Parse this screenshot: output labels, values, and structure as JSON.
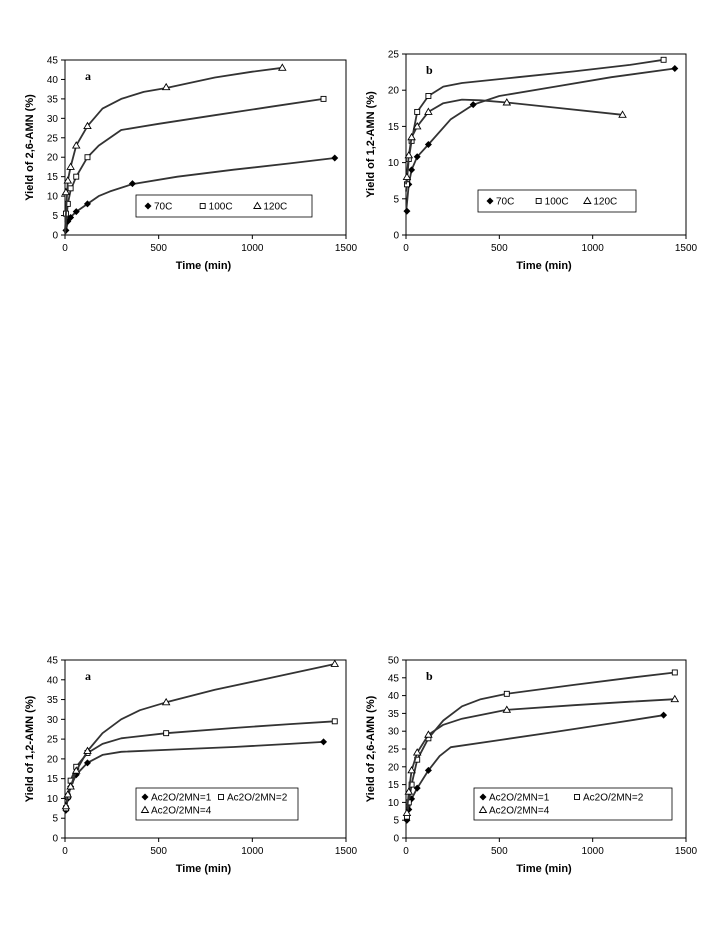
{
  "chart_data": [
    {
      "type": "line",
      "panel_label": "a",
      "xlabel": "Time  (min)",
      "ylabel": "Yield  of  2,6-AMN  (%)",
      "xlim": [
        0,
        1500
      ],
      "ylim": [
        0,
        45
      ],
      "xticks": [
        0,
        500,
        1000,
        1500
      ],
      "yticks": [
        0,
        5,
        10,
        15,
        20,
        25,
        30,
        35,
        40,
        45
      ],
      "legend_position": "lower-right",
      "series": [
        {
          "name": "70C",
          "marker": "diamond",
          "points": [
            [
              5,
              1.2
            ],
            [
              15,
              3.5
            ],
            [
              30,
              4.5
            ],
            [
              60,
              6
            ],
            [
              120,
              8
            ],
            [
              360,
              13.2
            ],
            [
              1440,
              19.8
            ]
          ],
          "curve": [
            [
              0,
              0
            ],
            [
              15,
              3.3
            ],
            [
              30,
              4.6
            ],
            [
              60,
              6
            ],
            [
              120,
              8
            ],
            [
              180,
              10
            ],
            [
              240,
              11.2
            ],
            [
              360,
              13.1
            ],
            [
              600,
              15
            ],
            [
              900,
              16.8
            ],
            [
              1200,
              18.4
            ],
            [
              1440,
              19.8
            ]
          ]
        },
        {
          "name": "100C",
          "marker": "square",
          "points": [
            [
              5,
              5.5
            ],
            [
              15,
              8
            ],
            [
              30,
              12
            ],
            [
              60,
              15
            ],
            [
              120,
              20
            ],
            [
              1380,
              35
            ]
          ],
          "curve": [
            [
              0,
              0.5
            ],
            [
              15,
              8
            ],
            [
              30,
              11.5
            ],
            [
              60,
              15
            ],
            [
              120,
              20
            ],
            [
              180,
              23
            ],
            [
              300,
              27
            ],
            [
              500,
              28.6
            ],
            [
              800,
              30.8
            ],
            [
              1100,
              33
            ],
            [
              1380,
              35
            ]
          ]
        },
        {
          "name": "120C",
          "marker": "triangle",
          "points": [
            [
              5,
              11
            ],
            [
              15,
              14
            ],
            [
              30,
              17.5
            ],
            [
              60,
              23
            ],
            [
              120,
              28
            ],
            [
              540,
              38
            ],
            [
              1160,
              43
            ]
          ],
          "curve": [
            [
              0,
              1
            ],
            [
              15,
              14
            ],
            [
              30,
              17.5
            ],
            [
              60,
              23
            ],
            [
              120,
              28
            ],
            [
              200,
              32.5
            ],
            [
              300,
              35
            ],
            [
              420,
              36.8
            ],
            [
              540,
              37.8
            ],
            [
              800,
              40.5
            ],
            [
              1000,
              42
            ],
            [
              1160,
              43
            ]
          ]
        }
      ]
    },
    {
      "type": "line",
      "panel_label": "b",
      "xlabel": "Time  (min)",
      "ylabel": "Yield  of  1,2-AMN  (%)",
      "xlim": [
        0,
        1500
      ],
      "ylim": [
        0,
        25
      ],
      "xticks": [
        0,
        500,
        1000,
        1500
      ],
      "yticks": [
        0,
        5,
        10,
        15,
        20,
        25
      ],
      "legend_position": "lower-right",
      "series": [
        {
          "name": "70C",
          "marker": "diamond",
          "points": [
            [
              5,
              3.3
            ],
            [
              15,
              7
            ],
            [
              30,
              9
            ],
            [
              60,
              10.8
            ],
            [
              120,
              12.5
            ],
            [
              360,
              18
            ],
            [
              1440,
              23
            ]
          ],
          "curve": [
            [
              0,
              3
            ],
            [
              15,
              7
            ],
            [
              30,
              9
            ],
            [
              60,
              10.8
            ],
            [
              120,
              12.5
            ],
            [
              240,
              16
            ],
            [
              360,
              18
            ],
            [
              500,
              19.2
            ],
            [
              800,
              20.5
            ],
            [
              1100,
              21.8
            ],
            [
              1440,
              23
            ]
          ]
        },
        {
          "name": "100C",
          "marker": "square",
          "points": [
            [
              5,
              7
            ],
            [
              15,
              10.5
            ],
            [
              30,
              13
            ],
            [
              60,
              17
            ],
            [
              120,
              19.2
            ],
            [
              1380,
              24.2
            ]
          ],
          "curve": [
            [
              0,
              6
            ],
            [
              15,
              10.5
            ],
            [
              30,
              13
            ],
            [
              60,
              17
            ],
            [
              120,
              19.2
            ],
            [
              200,
              20.5
            ],
            [
              300,
              21
            ],
            [
              600,
              21.8
            ],
            [
              900,
              22.6
            ],
            [
              1200,
              23.5
            ],
            [
              1380,
              24.2
            ]
          ]
        },
        {
          "name": "120C",
          "marker": "triangle",
          "points": [
            [
              5,
              8
            ],
            [
              15,
              11
            ],
            [
              30,
              13.5
            ],
            [
              60,
              15
            ],
            [
              120,
              17
            ],
            [
              540,
              18.3
            ],
            [
              1160,
              16.6
            ]
          ],
          "curve": [
            [
              0,
              7
            ],
            [
              15,
              11
            ],
            [
              30,
              13.5
            ],
            [
              60,
              15
            ],
            [
              120,
              17
            ],
            [
              200,
              18.2
            ],
            [
              300,
              18.7
            ],
            [
              400,
              18.6
            ],
            [
              540,
              18.3
            ],
            [
              800,
              17.6
            ],
            [
              1160,
              16.6
            ]
          ]
        }
      ]
    },
    {
      "type": "line",
      "panel_label": "a",
      "xlabel": "Time  (min)",
      "ylabel": "Yield  of  1,2-AMN  (%)",
      "xlim": [
        0,
        1500
      ],
      "ylim": [
        0,
        45
      ],
      "xticks": [
        0,
        500,
        1000,
        1500
      ],
      "yticks": [
        0,
        5,
        10,
        15,
        20,
        25,
        30,
        35,
        40,
        45
      ],
      "legend_position": "bottom-center",
      "series": [
        {
          "name": "Ac2O/2MN=1",
          "marker": "diamond",
          "points": [
            [
              5,
              7
            ],
            [
              15,
              10
            ],
            [
              30,
              13
            ],
            [
              60,
              16
            ],
            [
              120,
              19
            ],
            [
              1380,
              24.3
            ]
          ],
          "curve": [
            [
              5,
              7
            ],
            [
              15,
              10
            ],
            [
              30,
              13
            ],
            [
              60,
              16
            ],
            [
              120,
              19
            ],
            [
              200,
              21
            ],
            [
              300,
              21.8
            ],
            [
              600,
              22.4
            ],
            [
              900,
              23
            ],
            [
              1200,
              23.8
            ],
            [
              1380,
              24.3
            ]
          ]
        },
        {
          "name": "Ac2O/2MN=2",
          "marker": "square",
          "points": [
            [
              5,
              7.5
            ],
            [
              15,
              10.5
            ],
            [
              30,
              14.5
            ],
            [
              60,
              18
            ],
            [
              120,
              21.5
            ],
            [
              540,
              26.5
            ],
            [
              1440,
              29.5
            ]
          ],
          "curve": [
            [
              5,
              7.5
            ],
            [
              15,
              10.5
            ],
            [
              30,
              14.5
            ],
            [
              60,
              18
            ],
            [
              120,
              21.5
            ],
            [
              200,
              23.8
            ],
            [
              300,
              25.2
            ],
            [
              540,
              26.5
            ],
            [
              900,
              27.8
            ],
            [
              1200,
              28.8
            ],
            [
              1440,
              29.5
            ]
          ]
        },
        {
          "name": "Ac2O/2MN=4",
          "marker": "triangle",
          "points": [
            [
              5,
              8
            ],
            [
              15,
              11
            ],
            [
              30,
              13
            ],
            [
              60,
              17
            ],
            [
              120,
              22
            ],
            [
              540,
              34.3
            ],
            [
              1440,
              44
            ]
          ],
          "curve": [
            [
              5,
              8
            ],
            [
              15,
              11
            ],
            [
              30,
              13
            ],
            [
              60,
              17
            ],
            [
              120,
              22
            ],
            [
              200,
              26.5
            ],
            [
              300,
              30
            ],
            [
              400,
              32.3
            ],
            [
              540,
              34.3
            ],
            [
              800,
              37.5
            ],
            [
              1100,
              40.5
            ],
            [
              1440,
              44
            ]
          ]
        }
      ]
    },
    {
      "type": "line",
      "panel_label": "b",
      "xlabel": "Time  (min)",
      "ylabel": "Yield  of  2,6-AMN  (%)",
      "xlim": [
        0,
        1500
      ],
      "ylim": [
        0,
        50
      ],
      "xticks": [
        0,
        500,
        1000,
        1500
      ],
      "yticks": [
        0,
        5,
        10,
        15,
        20,
        25,
        30,
        35,
        40,
        45,
        50
      ],
      "legend_position": "bottom-center",
      "series": [
        {
          "name": "Ac2O/2MN=1",
          "marker": "diamond",
          "points": [
            [
              5,
              5
            ],
            [
              15,
              8
            ],
            [
              30,
              11
            ],
            [
              60,
              14
            ],
            [
              120,
              19
            ],
            [
              1380,
              34.5
            ]
          ],
          "curve": [
            [
              5,
              5
            ],
            [
              15,
              8
            ],
            [
              30,
              11
            ],
            [
              60,
              14
            ],
            [
              120,
              19
            ],
            [
              180,
              23
            ],
            [
              240,
              25.5
            ],
            [
              500,
              27.5
            ],
            [
              800,
              29.8
            ],
            [
              1100,
              32.2
            ],
            [
              1380,
              34.5
            ]
          ]
        },
        {
          "name": "Ac2O/2MN=2",
          "marker": "square",
          "points": [
            [
              5,
              6
            ],
            [
              15,
              10
            ],
            [
              30,
              15
            ],
            [
              60,
              22
            ],
            [
              120,
              28
            ],
            [
              540,
              40.5
            ],
            [
              1440,
              46.5
            ]
          ],
          "curve": [
            [
              5,
              6
            ],
            [
              15,
              10
            ],
            [
              30,
              15
            ],
            [
              60,
              22
            ],
            [
              120,
              28
            ],
            [
              200,
              33
            ],
            [
              300,
              37
            ],
            [
              400,
              39
            ],
            [
              540,
              40.5
            ],
            [
              900,
              43
            ],
            [
              1200,
              45
            ],
            [
              1440,
              46.5
            ]
          ]
        },
        {
          "name": "Ac2O/2MN=4",
          "marker": "triangle",
          "points": [
            [
              5,
              7
            ],
            [
              15,
              13
            ],
            [
              30,
              19
            ],
            [
              60,
              24
            ],
            [
              120,
              29
            ],
            [
              540,
              36
            ],
            [
              1440,
              39
            ]
          ],
          "curve": [
            [
              5,
              7
            ],
            [
              15,
              13
            ],
            [
              30,
              19
            ],
            [
              60,
              24
            ],
            [
              120,
              29
            ],
            [
              200,
              31.8
            ],
            [
              300,
              33.5
            ],
            [
              540,
              36
            ],
            [
              900,
              37.3
            ],
            [
              1200,
              38.3
            ],
            [
              1440,
              39
            ]
          ]
        }
      ]
    }
  ]
}
